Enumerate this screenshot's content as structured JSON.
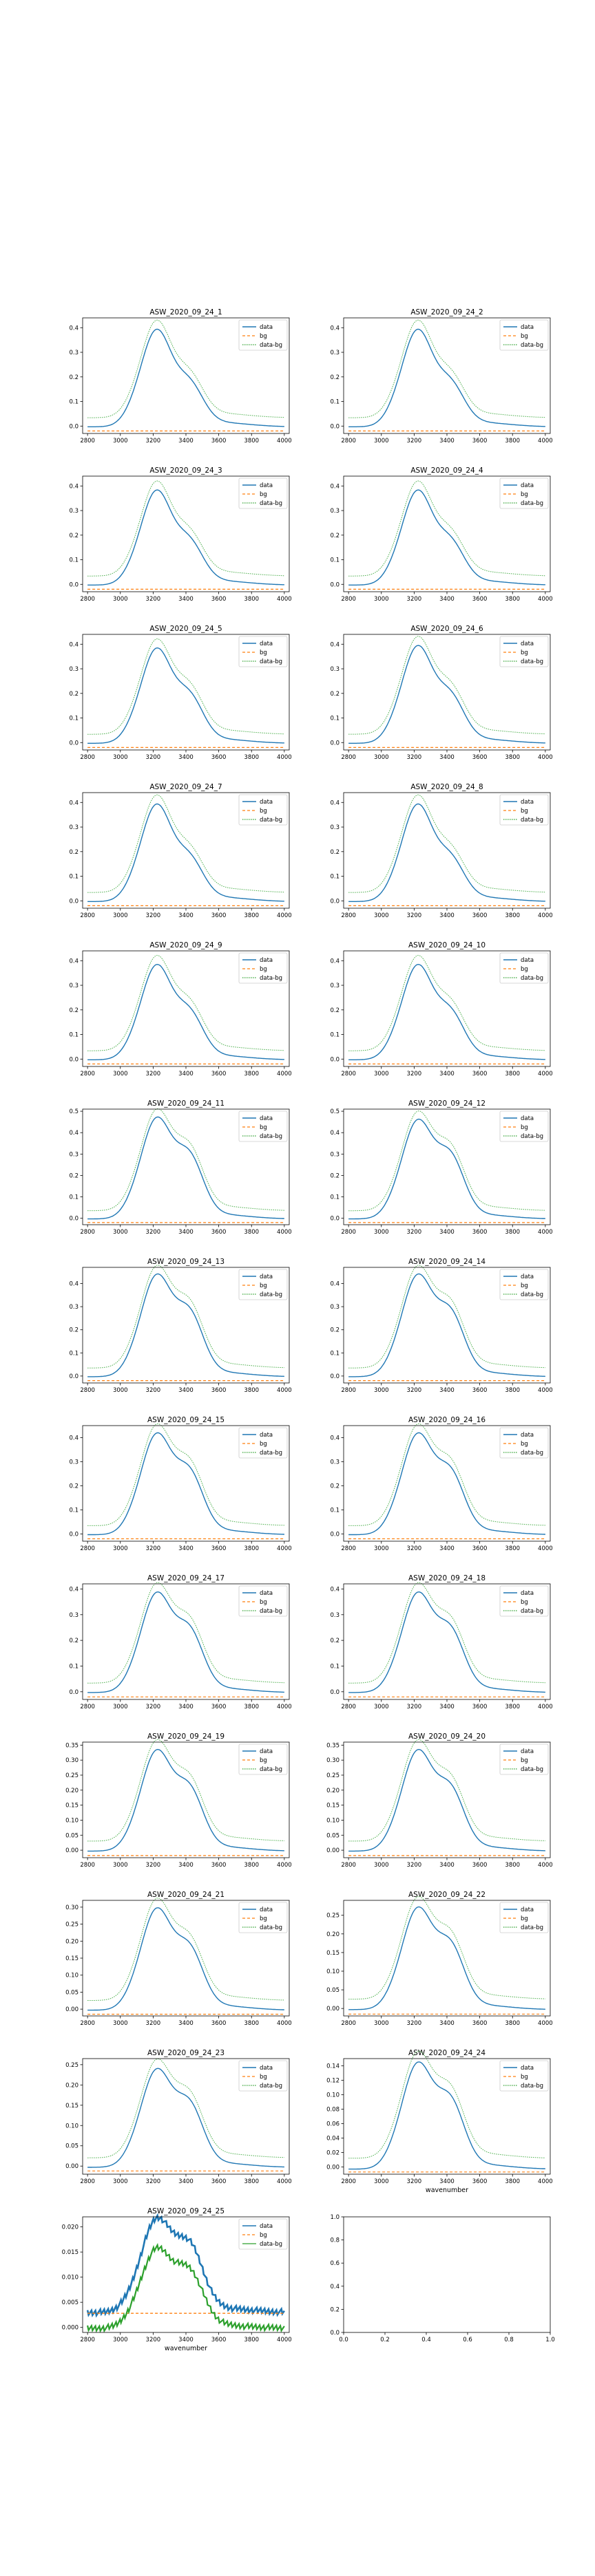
{
  "figure": {
    "xlabel_text": "wavenumber",
    "legend_labels": [
      "data",
      "bg",
      "data-bg"
    ],
    "x_ticks": [
      2800,
      3000,
      3200,
      3400,
      3600,
      3800,
      4000
    ],
    "colors": {
      "data": "#1f77b4",
      "bg": "#ff7f0e",
      "data_bg": "#2ca02c"
    }
  },
  "chart_data": [
    {
      "type": "line",
      "title": "ASW_2020_09_24_1",
      "xlabel": "",
      "ylabel": "",
      "xlim": [
        2770,
        4030
      ],
      "ylim": [
        -0.03,
        0.44
      ],
      "y_ticks": [
        0.0,
        0.1,
        0.2,
        0.3,
        0.4
      ],
      "peak": 0.38,
      "shoulder": 0.1,
      "bg_level": -0.02,
      "series": [
        {
          "name": "data",
          "style": "solid"
        },
        {
          "name": "bg",
          "style": "dashed"
        },
        {
          "name": "data-bg",
          "style": "dotted"
        }
      ]
    },
    {
      "type": "line",
      "title": "ASW_2020_09_24_2",
      "xlabel": "",
      "ylabel": "",
      "xlim": [
        2770,
        4030
      ],
      "ylim": [
        -0.03,
        0.44
      ],
      "y_ticks": [
        0.0,
        0.1,
        0.2,
        0.3,
        0.4
      ],
      "peak": 0.38,
      "shoulder": 0.1,
      "bg_level": -0.02,
      "series": [
        {
          "name": "data",
          "style": "solid"
        },
        {
          "name": "bg",
          "style": "dashed"
        },
        {
          "name": "data-bg",
          "style": "dotted"
        }
      ]
    },
    {
      "type": "line",
      "title": "ASW_2020_09_24_3",
      "xlabel": "",
      "ylabel": "",
      "xlim": [
        2770,
        4030
      ],
      "ylim": [
        -0.03,
        0.44
      ],
      "y_ticks": [
        0.0,
        0.1,
        0.2,
        0.3,
        0.4
      ],
      "peak": 0.37,
      "shoulder": 0.1,
      "bg_level": -0.02,
      "series": [
        {
          "name": "data",
          "style": "solid"
        },
        {
          "name": "bg",
          "style": "dashed"
        },
        {
          "name": "data-bg",
          "style": "dotted"
        }
      ]
    },
    {
      "type": "line",
      "title": "ASW_2020_09_24_4",
      "xlabel": "",
      "ylabel": "",
      "xlim": [
        2770,
        4030
      ],
      "ylim": [
        -0.03,
        0.44
      ],
      "y_ticks": [
        0.0,
        0.1,
        0.2,
        0.3,
        0.4
      ],
      "peak": 0.37,
      "shoulder": 0.1,
      "bg_level": -0.02,
      "series": [
        {
          "name": "data",
          "style": "solid"
        },
        {
          "name": "bg",
          "style": "dashed"
        },
        {
          "name": "data-bg",
          "style": "dotted"
        }
      ]
    },
    {
      "type": "line",
      "title": "ASW_2020_09_24_5",
      "xlabel": "",
      "ylabel": "",
      "xlim": [
        2770,
        4030
      ],
      "ylim": [
        -0.03,
        0.44
      ],
      "y_ticks": [
        0.0,
        0.1,
        0.2,
        0.3,
        0.4
      ],
      "peak": 0.37,
      "shoulder": 0.11,
      "bg_level": -0.02,
      "series": [
        {
          "name": "data",
          "style": "solid"
        },
        {
          "name": "bg",
          "style": "dashed"
        },
        {
          "name": "data-bg",
          "style": "dotted"
        }
      ]
    },
    {
      "type": "line",
      "title": "ASW_2020_09_24_6",
      "xlabel": "",
      "ylabel": "",
      "xlim": [
        2770,
        4030
      ],
      "ylim": [
        -0.03,
        0.44
      ],
      "y_ticks": [
        0.0,
        0.1,
        0.2,
        0.3,
        0.4
      ],
      "peak": 0.38,
      "shoulder": 0.11,
      "bg_level": -0.02,
      "series": [
        {
          "name": "data",
          "style": "solid"
        },
        {
          "name": "bg",
          "style": "dashed"
        },
        {
          "name": "data-bg",
          "style": "dotted"
        }
      ]
    },
    {
      "type": "line",
      "title": "ASW_2020_09_24_7",
      "xlabel": "",
      "ylabel": "",
      "xlim": [
        2770,
        4030
      ],
      "ylim": [
        -0.03,
        0.44
      ],
      "y_ticks": [
        0.0,
        0.1,
        0.2,
        0.3,
        0.4
      ],
      "peak": 0.38,
      "shoulder": 0.1,
      "bg_level": -0.02,
      "series": [
        {
          "name": "data",
          "style": "solid"
        },
        {
          "name": "bg",
          "style": "dashed"
        },
        {
          "name": "data-bg",
          "style": "dotted"
        }
      ]
    },
    {
      "type": "line",
      "title": "ASW_2020_09_24_8",
      "xlabel": "",
      "ylabel": "",
      "xlim": [
        2770,
        4030
      ],
      "ylim": [
        -0.03,
        0.44
      ],
      "y_ticks": [
        0.0,
        0.1,
        0.2,
        0.3,
        0.4
      ],
      "peak": 0.38,
      "shoulder": 0.1,
      "bg_level": -0.02,
      "series": [
        {
          "name": "data",
          "style": "solid"
        },
        {
          "name": "bg",
          "style": "dashed"
        },
        {
          "name": "data-bg",
          "style": "dotted"
        }
      ]
    },
    {
      "type": "line",
      "title": "ASW_2020_09_24_9",
      "xlabel": "",
      "ylabel": "",
      "xlim": [
        2770,
        4030
      ],
      "ylim": [
        -0.03,
        0.44
      ],
      "y_ticks": [
        0.0,
        0.1,
        0.2,
        0.3,
        0.4
      ],
      "peak": 0.37,
      "shoulder": 0.11,
      "bg_level": -0.02,
      "series": [
        {
          "name": "data",
          "style": "solid"
        },
        {
          "name": "bg",
          "style": "dashed"
        },
        {
          "name": "data-bg",
          "style": "dotted"
        }
      ]
    },
    {
      "type": "line",
      "title": "ASW_2020_09_24_10",
      "xlabel": "",
      "ylabel": "",
      "xlim": [
        2770,
        4030
      ],
      "ylim": [
        -0.03,
        0.44
      ],
      "y_ticks": [
        0.0,
        0.1,
        0.2,
        0.3,
        0.4
      ],
      "peak": 0.37,
      "shoulder": 0.11,
      "bg_level": -0.02,
      "series": [
        {
          "name": "data",
          "style": "solid"
        },
        {
          "name": "bg",
          "style": "dashed"
        },
        {
          "name": "data-bg",
          "style": "dotted"
        }
      ]
    },
    {
      "type": "line",
      "title": "ASW_2020_09_24_11",
      "xlabel": "",
      "ylabel": "",
      "xlim": [
        2770,
        4030
      ],
      "ylim": [
        -0.03,
        0.51
      ],
      "y_ticks": [
        0.0,
        0.1,
        0.2,
        0.3,
        0.4,
        0.5
      ],
      "peak": 0.45,
      "shoulder": 0.17,
      "bg_level": -0.02,
      "series": [
        {
          "name": "data",
          "style": "solid"
        },
        {
          "name": "bg",
          "style": "dashed"
        },
        {
          "name": "data-bg",
          "style": "dotted"
        }
      ]
    },
    {
      "type": "line",
      "title": "ASW_2020_09_24_12",
      "xlabel": "",
      "ylabel": "",
      "xlim": [
        2770,
        4030
      ],
      "ylim": [
        -0.03,
        0.51
      ],
      "y_ticks": [
        0.0,
        0.1,
        0.2,
        0.3,
        0.4,
        0.5
      ],
      "peak": 0.44,
      "shoulder": 0.17,
      "bg_level": -0.02,
      "series": [
        {
          "name": "data",
          "style": "solid"
        },
        {
          "name": "bg",
          "style": "dashed"
        },
        {
          "name": "data-bg",
          "style": "dotted"
        }
      ]
    },
    {
      "type": "line",
      "title": "ASW_2020_09_24_13",
      "xlabel": "",
      "ylabel": "",
      "xlim": [
        2770,
        4030
      ],
      "ylim": [
        -0.03,
        0.47
      ],
      "y_ticks": [
        0.0,
        0.1,
        0.2,
        0.3,
        0.4
      ],
      "peak": 0.42,
      "shoulder": 0.16,
      "bg_level": -0.02,
      "series": [
        {
          "name": "data",
          "style": "solid"
        },
        {
          "name": "bg",
          "style": "dashed"
        },
        {
          "name": "data-bg",
          "style": "dotted"
        }
      ]
    },
    {
      "type": "line",
      "title": "ASW_2020_09_24_14",
      "xlabel": "",
      "ylabel": "",
      "xlim": [
        2770,
        4030
      ],
      "ylim": [
        -0.03,
        0.47
      ],
      "y_ticks": [
        0.0,
        0.1,
        0.2,
        0.3,
        0.4
      ],
      "peak": 0.42,
      "shoulder": 0.16,
      "bg_level": -0.02,
      "series": [
        {
          "name": "data",
          "style": "solid"
        },
        {
          "name": "bg",
          "style": "dashed"
        },
        {
          "name": "data-bg",
          "style": "dotted"
        }
      ]
    },
    {
      "type": "line",
      "title": "ASW_2020_09_24_15",
      "xlabel": "",
      "ylabel": "",
      "xlim": [
        2770,
        4030
      ],
      "ylim": [
        -0.03,
        0.45
      ],
      "y_ticks": [
        0.0,
        0.1,
        0.2,
        0.3,
        0.4
      ],
      "peak": 0.4,
      "shoulder": 0.15,
      "bg_level": -0.02,
      "series": [
        {
          "name": "data",
          "style": "solid"
        },
        {
          "name": "bg",
          "style": "dashed"
        },
        {
          "name": "data-bg",
          "style": "dotted"
        }
      ]
    },
    {
      "type": "line",
      "title": "ASW_2020_09_24_16",
      "xlabel": "",
      "ylabel": "",
      "xlim": [
        2770,
        4030
      ],
      "ylim": [
        -0.03,
        0.45
      ],
      "y_ticks": [
        0.0,
        0.1,
        0.2,
        0.3,
        0.4
      ],
      "peak": 0.4,
      "shoulder": 0.15,
      "bg_level": -0.02,
      "series": [
        {
          "name": "data",
          "style": "solid"
        },
        {
          "name": "bg",
          "style": "dashed"
        },
        {
          "name": "data-bg",
          "style": "dotted"
        }
      ]
    },
    {
      "type": "line",
      "title": "ASW_2020_09_24_17",
      "xlabel": "",
      "ylabel": "",
      "xlim": [
        2770,
        4030
      ],
      "ylim": [
        -0.03,
        0.42
      ],
      "y_ticks": [
        0.0,
        0.1,
        0.2,
        0.3,
        0.4
      ],
      "peak": 0.37,
      "shoulder": 0.14,
      "bg_level": -0.02,
      "series": [
        {
          "name": "data",
          "style": "solid"
        },
        {
          "name": "bg",
          "style": "dashed"
        },
        {
          "name": "data-bg",
          "style": "dotted"
        }
      ]
    },
    {
      "type": "line",
      "title": "ASW_2020_09_24_18",
      "xlabel": "",
      "ylabel": "",
      "xlim": [
        2770,
        4030
      ],
      "ylim": [
        -0.03,
        0.42
      ],
      "y_ticks": [
        0.0,
        0.1,
        0.2,
        0.3,
        0.4
      ],
      "peak": 0.37,
      "shoulder": 0.14,
      "bg_level": -0.02,
      "series": [
        {
          "name": "data",
          "style": "solid"
        },
        {
          "name": "bg",
          "style": "dashed"
        },
        {
          "name": "data-bg",
          "style": "dotted"
        }
      ]
    },
    {
      "type": "line",
      "title": "ASW_2020_09_24_19",
      "xlabel": "",
      "ylabel": "",
      "xlim": [
        2770,
        4030
      ],
      "ylim": [
        -0.025,
        0.36
      ],
      "y_ticks": [
        0.0,
        0.05,
        0.1,
        0.15,
        0.2,
        0.25,
        0.3,
        0.35
      ],
      "peak": 0.32,
      "shoulder": 0.12,
      "bg_level": -0.018,
      "series": [
        {
          "name": "data",
          "style": "solid"
        },
        {
          "name": "bg",
          "style": "dashed"
        },
        {
          "name": "data-bg",
          "style": "dotted"
        }
      ]
    },
    {
      "type": "line",
      "title": "ASW_2020_09_24_20",
      "xlabel": "",
      "ylabel": "",
      "xlim": [
        2770,
        4030
      ],
      "ylim": [
        -0.025,
        0.36
      ],
      "y_ticks": [
        0.0,
        0.05,
        0.1,
        0.15,
        0.2,
        0.25,
        0.3,
        0.35
      ],
      "peak": 0.32,
      "shoulder": 0.12,
      "bg_level": -0.018,
      "series": [
        {
          "name": "data",
          "style": "solid"
        },
        {
          "name": "bg",
          "style": "dashed"
        },
        {
          "name": "data-bg",
          "style": "dotted"
        }
      ]
    },
    {
      "type": "line",
      "title": "ASW_2020_09_24_21",
      "xlabel": "",
      "ylabel": "",
      "xlim": [
        2770,
        4030
      ],
      "ylim": [
        -0.02,
        0.32
      ],
      "y_ticks": [
        0.0,
        0.05,
        0.1,
        0.15,
        0.2,
        0.25,
        0.3
      ],
      "peak": 0.285,
      "shoulder": 0.105,
      "bg_level": -0.015,
      "series": [
        {
          "name": "data",
          "style": "solid"
        },
        {
          "name": "bg",
          "style": "dashed"
        },
        {
          "name": "data-bg",
          "style": "dotted"
        }
      ]
    },
    {
      "type": "line",
      "title": "ASW_2020_09_24_22",
      "xlabel": "",
      "ylabel": "",
      "xlim": [
        2770,
        4030
      ],
      "ylim": [
        -0.02,
        0.29
      ],
      "y_ticks": [
        0.0,
        0.05,
        0.1,
        0.15,
        0.2,
        0.25
      ],
      "peak": 0.26,
      "shoulder": 0.1,
      "bg_level": -0.015,
      "series": [
        {
          "name": "data",
          "style": "solid"
        },
        {
          "name": "bg",
          "style": "dashed"
        },
        {
          "name": "data-bg",
          "style": "dotted"
        }
      ]
    },
    {
      "type": "line",
      "title": "ASW_2020_09_24_23",
      "xlabel": "",
      "ylabel": "",
      "xlim": [
        2770,
        4030
      ],
      "ylim": [
        -0.02,
        0.265
      ],
      "y_ticks": [
        0.0,
        0.05,
        0.1,
        0.15,
        0.2,
        0.25
      ],
      "peak": 0.23,
      "shoulder": 0.09,
      "bg_level": -0.012,
      "series": [
        {
          "name": "data",
          "style": "solid"
        },
        {
          "name": "bg",
          "style": "dashed"
        },
        {
          "name": "data-bg",
          "style": "dotted"
        }
      ]
    },
    {
      "type": "line",
      "title": "ASW_2020_09_24_24",
      "xlabel": "wavenumber",
      "ylabel": "",
      "xlim": [
        2770,
        4030
      ],
      "ylim": [
        -0.01,
        0.15
      ],
      "y_ticks": [
        0.0,
        0.02,
        0.04,
        0.06,
        0.08,
        0.1,
        0.12,
        0.14
      ],
      "peak": 0.14,
      "shoulder": 0.055,
      "bg_level": -0.007,
      "series": [
        {
          "name": "data",
          "style": "solid"
        },
        {
          "name": "bg",
          "style": "dashed"
        },
        {
          "name": "data-bg",
          "style": "dotted"
        }
      ]
    },
    {
      "type": "line",
      "title": "ASW_2020_09_24_25",
      "xlabel": "wavenumber",
      "ylabel": "",
      "xlim": [
        2770,
        4030
      ],
      "ylim": [
        -0.001,
        0.022
      ],
      "y_ticks": [
        0.0,
        0.005,
        0.01,
        0.015,
        0.02
      ],
      "peak": 0.0205,
      "shoulder": 0.009,
      "bg_level": 0.0028,
      "noisy": true,
      "series": [
        {
          "name": "data",
          "style": "solid"
        },
        {
          "name": "bg",
          "style": "dashed"
        },
        {
          "name": "data-bg",
          "style": "solid"
        }
      ]
    },
    {
      "type": "line",
      "title": "",
      "xlabel": "",
      "ylabel": "",
      "empty": true,
      "xlim": [
        0,
        1
      ],
      "ylim": [
        0,
        1
      ],
      "x_ticks": [
        0.0,
        0.2,
        0.4,
        0.6,
        0.8,
        1.0
      ],
      "y_ticks": [
        0.0,
        0.2,
        0.4,
        0.6,
        0.8,
        1.0
      ],
      "series": []
    }
  ]
}
